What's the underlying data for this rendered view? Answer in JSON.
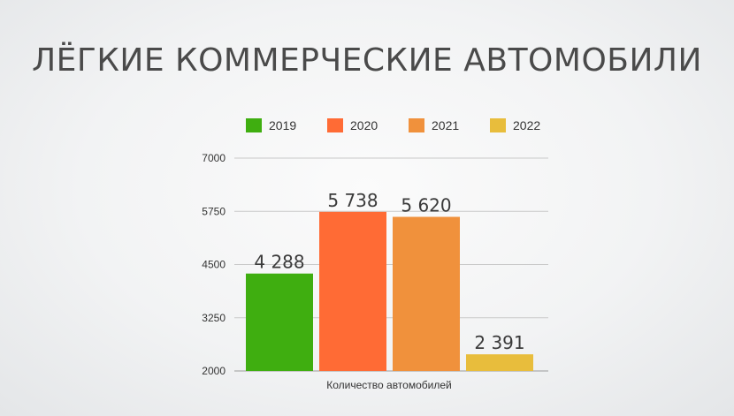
{
  "slide": {
    "title": "ЛЁГКИЕ КОММЕРЧЕСКИЕ АВТОМОБИЛИ"
  },
  "chart_data": {
    "type": "bar",
    "title": "",
    "xlabel": "Количество автомобилей",
    "ylabel": "",
    "categories": [
      "Количество автомобилей"
    ],
    "series": [
      {
        "name": "2019",
        "values": [
          4288
        ],
        "label": "4 288",
        "color": "#3fae10"
      },
      {
        "name": "2020",
        "values": [
          5738
        ],
        "label": "5 738",
        "color": "#ff6b35"
      },
      {
        "name": "2021",
        "values": [
          5620
        ],
        "label": "5 620",
        "color": "#f0913c"
      },
      {
        "name": "2022",
        "values": [
          2391
        ],
        "label": "2 391",
        "color": "#e8bd3c"
      }
    ],
    "ylim": [
      2000,
      7000
    ],
    "yticks": [
      "2000",
      "3250",
      "4500",
      "5750",
      "7000"
    ],
    "grid": true,
    "legend": "top"
  }
}
